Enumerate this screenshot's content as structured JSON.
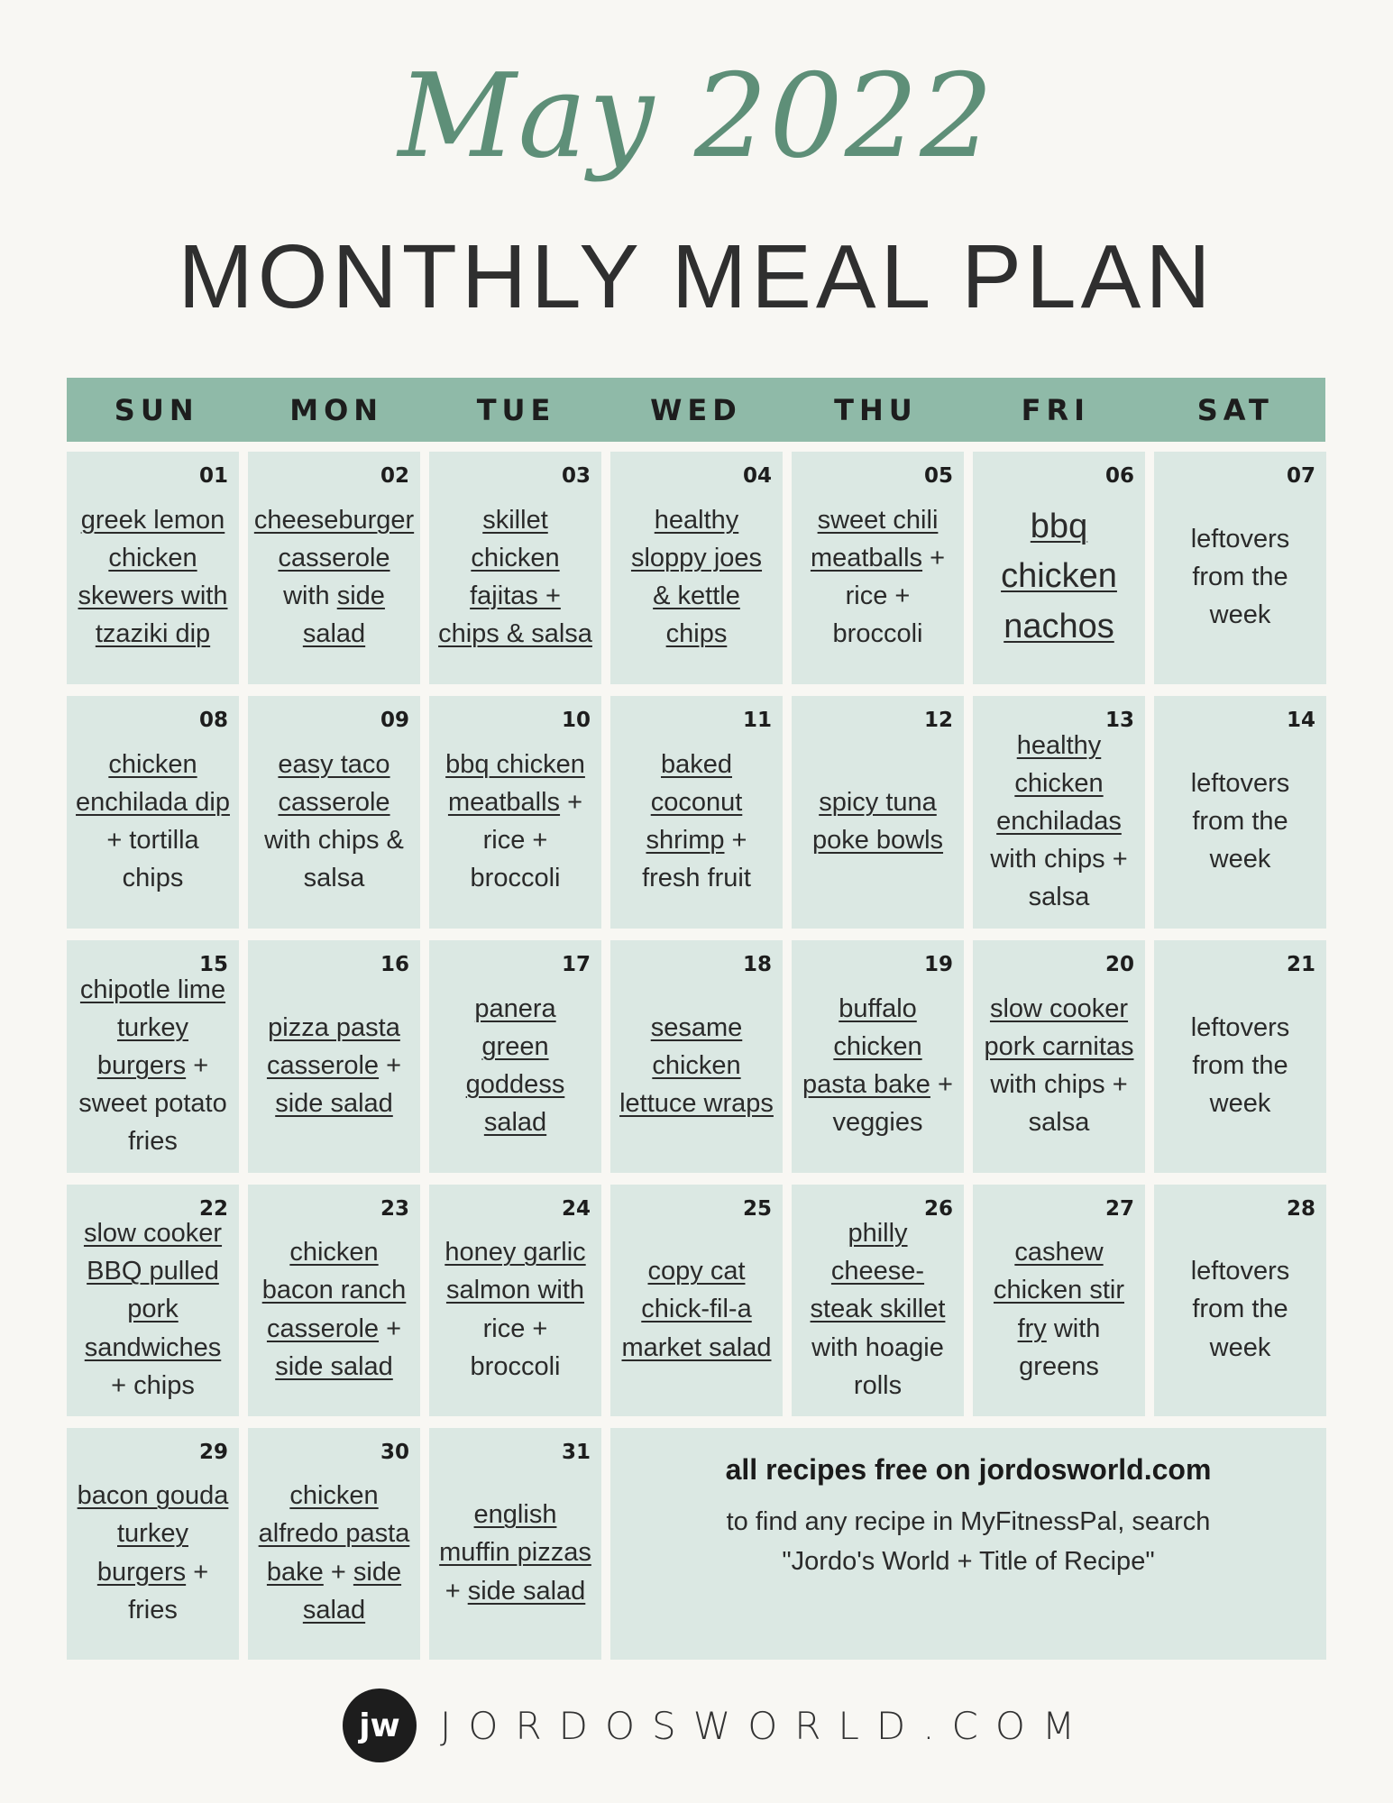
{
  "title_script": "May 2022",
  "title_main": "MONTHLY MEAL PLAN",
  "colors": {
    "background": "#f8f7f3",
    "header": "#8fbaa8",
    "cell": "#dbe8e3",
    "accent": "#5e8f78"
  },
  "days": [
    "SUN",
    "MON",
    "TUE",
    "WED",
    "THU",
    "FRI",
    "SAT"
  ],
  "cells": [
    {
      "date": "01",
      "meal": [
        {
          "t": "greek lemon chicken skewers with tzaziki dip",
          "u": true
        }
      ]
    },
    {
      "date": "02",
      "meal": [
        {
          "t": "cheeseburger casserole",
          "u": true
        },
        {
          "t": " with ",
          "u": false
        },
        {
          "t": "side salad",
          "u": true
        }
      ]
    },
    {
      "date": "03",
      "meal": [
        {
          "t": "skillet chicken fajitas + chips & salsa",
          "u": true
        }
      ]
    },
    {
      "date": "04",
      "meal": [
        {
          "t": "healthy sloppy joes & kettle chips",
          "u": true
        }
      ]
    },
    {
      "date": "05",
      "meal": [
        {
          "t": "sweet chili meatballs",
          "u": true
        },
        {
          "t": " + rice + broccoli",
          "u": false
        }
      ]
    },
    {
      "date": "06",
      "big": true,
      "meal": [
        {
          "t": "bbq chicken nachos",
          "u": true
        }
      ]
    },
    {
      "date": "07",
      "meal": [
        {
          "t": "leftovers from the week",
          "u": false
        }
      ]
    },
    {
      "date": "08",
      "meal": [
        {
          "t": "chicken enchilada dip",
          "u": true
        },
        {
          "t": " + tortilla chips",
          "u": false
        }
      ]
    },
    {
      "date": "09",
      "meal": [
        {
          "t": "easy taco casserole",
          "u": true
        },
        {
          "t": " with chips & salsa",
          "u": false
        }
      ]
    },
    {
      "date": "10",
      "meal": [
        {
          "t": "bbq chicken meatballs",
          "u": true
        },
        {
          "t": " + rice + broccoli",
          "u": false
        }
      ]
    },
    {
      "date": "11",
      "meal": [
        {
          "t": "baked coconut shrimp",
          "u": true
        },
        {
          "t": " + fresh fruit",
          "u": false
        }
      ]
    },
    {
      "date": "12",
      "meal": [
        {
          "t": "spicy tuna poke bowls",
          "u": true
        }
      ]
    },
    {
      "date": "13",
      "meal": [
        {
          "t": "healthy chicken enchiladas",
          "u": true
        },
        {
          "t": " with chips + salsa",
          "u": false
        }
      ]
    },
    {
      "date": "14",
      "meal": [
        {
          "t": "leftovers from the week",
          "u": false
        }
      ]
    },
    {
      "date": "15",
      "meal": [
        {
          "t": "chipotle lime turkey burgers",
          "u": true
        },
        {
          "t": " + sweet potato fries",
          "u": false
        }
      ]
    },
    {
      "date": "16",
      "meal": [
        {
          "t": "pizza pasta casserole",
          "u": true
        },
        {
          "t": " + ",
          "u": false
        },
        {
          "t": "side salad",
          "u": true
        }
      ]
    },
    {
      "date": "17",
      "meal": [
        {
          "t": "panera green goddess salad",
          "u": true
        }
      ]
    },
    {
      "date": "18",
      "meal": [
        {
          "t": "sesame chicken lettuce wraps",
          "u": true
        }
      ]
    },
    {
      "date": "19",
      "meal": [
        {
          "t": "buffalo chicken pasta bake",
          "u": true
        },
        {
          "t": " + veggies",
          "u": false
        }
      ]
    },
    {
      "date": "20",
      "meal": [
        {
          "t": "slow cooker pork carnitas",
          "u": true
        },
        {
          "t": " with chips + salsa",
          "u": false
        }
      ]
    },
    {
      "date": "21",
      "meal": [
        {
          "t": "leftovers from the week",
          "u": false
        }
      ]
    },
    {
      "date": "22",
      "meal": [
        {
          "t": "slow cooker BBQ pulled pork sandwiches",
          "u": true
        },
        {
          "t": " + chips",
          "u": false
        }
      ]
    },
    {
      "date": "23",
      "meal": [
        {
          "t": "chicken bacon ranch casserole",
          "u": true
        },
        {
          "t": " + ",
          "u": false
        },
        {
          "t": "side salad",
          "u": true
        }
      ]
    },
    {
      "date": "24",
      "meal": [
        {
          "t": "honey garlic salmon with",
          "u": true
        },
        {
          "t": " rice + broccoli",
          "u": false
        }
      ]
    },
    {
      "date": "25",
      "meal": [
        {
          "t": "copy cat chick-fil-a market salad",
          "u": true
        }
      ]
    },
    {
      "date": "26",
      "meal": [
        {
          "t": "philly cheese-steak skillet",
          "u": true
        },
        {
          "t": " with hoagie rolls",
          "u": false
        }
      ]
    },
    {
      "date": "27",
      "meal": [
        {
          "t": "cashew chicken stir fry",
          "u": true
        },
        {
          "t": " with greens",
          "u": false
        }
      ]
    },
    {
      "date": "28",
      "meal": [
        {
          "t": "leftovers from the week",
          "u": false
        }
      ]
    },
    {
      "date": "29",
      "meal": [
        {
          "t": "bacon gouda turkey burgers",
          "u": true
        },
        {
          "t": " + fries",
          "u": false
        }
      ]
    },
    {
      "date": "30",
      "meal": [
        {
          "t": "chicken alfredo pasta bake",
          "u": true
        },
        {
          "t": " + ",
          "u": false
        },
        {
          "t": "side salad",
          "u": true
        }
      ]
    },
    {
      "date": "31",
      "meal": [
        {
          "t": "english muffin pizzas",
          "u": true
        },
        {
          "t": " + ",
          "u": false
        },
        {
          "t": "side salad",
          "u": true
        }
      ]
    }
  ],
  "note": {
    "title": "all recipes free on jordosworld.com",
    "line1": "to find any recipe in MyFitnessPal, search",
    "line2": "\"Jordo's World + Title of Recipe\""
  },
  "footer": {
    "logo": "jw",
    "site": "JORDOSWORLD.COM"
  }
}
